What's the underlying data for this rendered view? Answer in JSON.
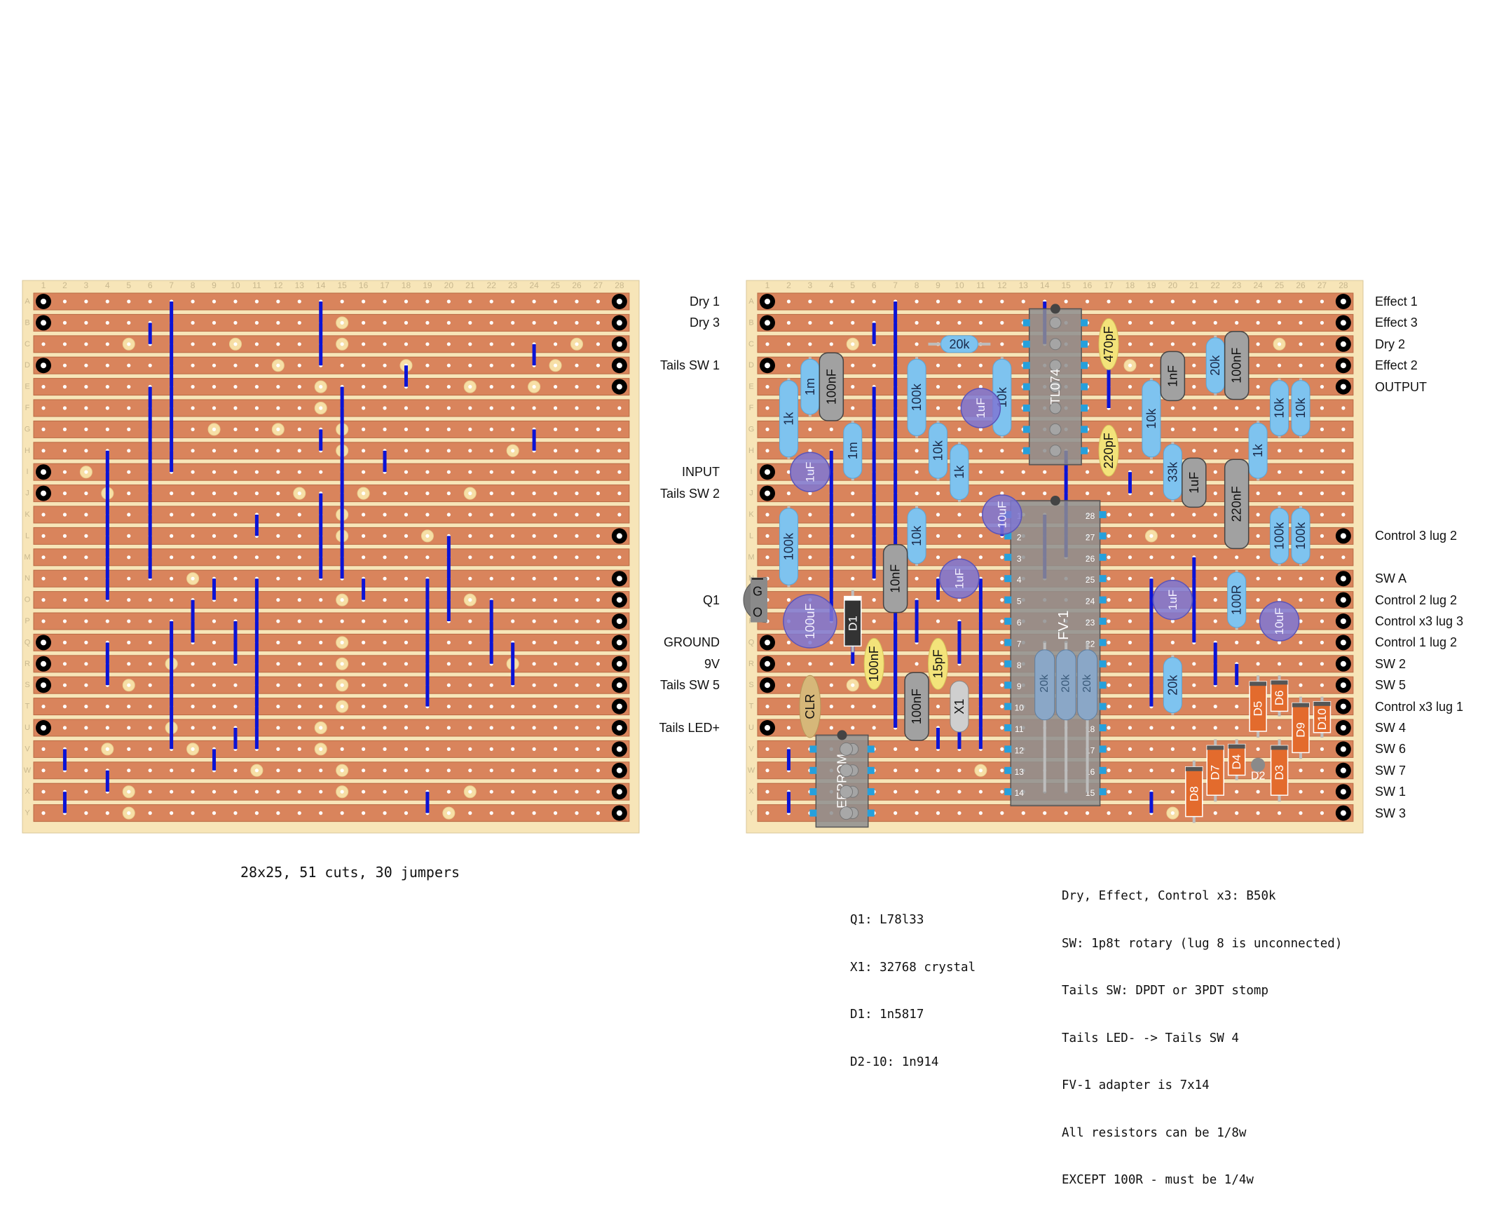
{
  "colors": {
    "board": "#f7e5b8",
    "strip": "#d9845c",
    "strip_edge": "#b96a44",
    "hole": "#ffffff",
    "cut": "#f7dfa6",
    "jumper": "#0b13d6",
    "resistor": "#7ec3ef",
    "electrolytic": "#7e77d4",
    "film_cap": "#a1a1a1",
    "ceramic_cap": "#f3e37a",
    "diode": "#e36b2d",
    "ic": "#8e8e8e",
    "ic_pin": "#26a0dc",
    "terminal": "#000000"
  },
  "board_left": {
    "columns": [
      "1",
      "2",
      "3",
      "4",
      "5",
      "6",
      "7",
      "8",
      "9",
      "10",
      "11",
      "12",
      "13",
      "14",
      "15",
      "16",
      "17",
      "18",
      "19",
      "20",
      "21",
      "22",
      "23",
      "24",
      "25",
      "26",
      "27",
      "28"
    ],
    "rows": [
      "A",
      "B",
      "C",
      "D",
      "E",
      "F",
      "G",
      "H",
      "I",
      "J",
      "K",
      "L",
      "M",
      "N",
      "O",
      "P",
      "Q",
      "R",
      "S",
      "T",
      "U",
      "V",
      "W",
      "X",
      "Y"
    ],
    "labels": [
      {
        "text": "Dry 1",
        "row": "A"
      },
      {
        "text": "Dry 3",
        "row": "B"
      },
      {
        "text": "Tails SW 1",
        "row": "D"
      },
      {
        "text": "INPUT",
        "row": "I"
      },
      {
        "text": "Tails SW 2",
        "row": "J"
      },
      {
        "text": "Q1",
        "row": "O"
      },
      {
        "text": "GROUND",
        "row": "Q"
      },
      {
        "text": "9V",
        "row": "R"
      },
      {
        "text": "Tails SW 5",
        "row": "S"
      },
      {
        "text": "Tails LED+",
        "row": "U"
      }
    ]
  },
  "board_right": {
    "columns": [
      "1",
      "2",
      "3",
      "4",
      "5",
      "6",
      "7",
      "8",
      "9",
      "10",
      "11",
      "12",
      "13",
      "14",
      "15",
      "16",
      "17",
      "18",
      "19",
      "20",
      "21",
      "22",
      "23",
      "24",
      "25",
      "26",
      "27",
      "28"
    ],
    "rows": [
      "A",
      "B",
      "C",
      "D",
      "E",
      "F",
      "G",
      "H",
      "I",
      "J",
      "K",
      "L",
      "M",
      "N",
      "O",
      "P",
      "Q",
      "R",
      "S",
      "T",
      "U",
      "V",
      "W",
      "X",
      "Y"
    ],
    "labels": [
      {
        "text": "Effect 1",
        "row": "A"
      },
      {
        "text": "Effect 3",
        "row": "B"
      },
      {
        "text": "Dry 2",
        "row": "C"
      },
      {
        "text": "Effect 2",
        "row": "D"
      },
      {
        "text": "OUTPUT",
        "row": "E"
      },
      {
        "text": "Control 3 lug 2",
        "row": "L"
      },
      {
        "text": "SW A",
        "row": "N"
      },
      {
        "text": "Control 2 lug 2",
        "row": "O"
      },
      {
        "text": "Control x3 lug 3",
        "row": "P"
      },
      {
        "text": "Control 1 lug 2",
        "row": "Q"
      },
      {
        "text": "SW 2",
        "row": "R"
      },
      {
        "text": "SW 5",
        "row": "S"
      },
      {
        "text": "Control x3 lug 1",
        "row": "T"
      },
      {
        "text": "SW 4",
        "row": "U"
      },
      {
        "text": "SW 6",
        "row": "V"
      },
      {
        "text": "SW 7",
        "row": "W"
      },
      {
        "text": "SW 1",
        "row": "X"
      },
      {
        "text": "SW 3",
        "row": "Y"
      }
    ],
    "components": {
      "resistors": [
        {
          "value": "1k",
          "col": 2,
          "r1": "E",
          "r2": "H"
        },
        {
          "value": "1m",
          "col": 3,
          "r1": "D",
          "r2": "F"
        },
        {
          "value": "100k",
          "col": 2,
          "r1": "K",
          "r2": "N"
        },
        {
          "value": "1m",
          "col": 5,
          "r1": "G",
          "r2": "I"
        },
        {
          "value": "20k",
          "col": 9,
          "r1": "C",
          "r2": "C",
          "c2": 11
        },
        {
          "value": "100k",
          "col": 8,
          "r1": "D",
          "r2": "G"
        },
        {
          "value": "10k",
          "col": 9,
          "r1": "G",
          "r2": "I"
        },
        {
          "value": "1k",
          "col": 10,
          "r1": "H",
          "r2": "J"
        },
        {
          "value": "10k",
          "col": 12,
          "r1": "D",
          "r2": "G"
        },
        {
          "value": "10k",
          "col": 8,
          "r1": "K",
          "r2": "M"
        },
        {
          "value": "10k",
          "col": 19,
          "r1": "E",
          "r2": "H"
        },
        {
          "value": "33k",
          "col": 20,
          "r1": "H",
          "r2": "J"
        },
        {
          "value": "20k",
          "col": 22,
          "r1": "C",
          "r2": "E"
        },
        {
          "value": "1k",
          "col": 24,
          "r1": "G",
          "r2": "I"
        },
        {
          "value": "10k",
          "col": 25,
          "r1": "E",
          "r2": "G"
        },
        {
          "value": "10k",
          "col": 26,
          "r1": "E",
          "r2": "G"
        },
        {
          "value": "100k",
          "col": 25,
          "r1": "K",
          "r2": "M"
        },
        {
          "value": "100k",
          "col": 26,
          "r1": "K",
          "r2": "M"
        },
        {
          "value": "100R",
          "col": 23,
          "r1": "N",
          "r2": "P"
        },
        {
          "value": "20k",
          "col": 20,
          "r1": "R",
          "r2": "T"
        }
      ],
      "electrolytics": [
        {
          "value": "1uF",
          "col": 3,
          "row": "I"
        },
        {
          "value": "100uF",
          "col": 3,
          "row": "P"
        },
        {
          "value": "1uF",
          "col": 11,
          "row": "F"
        },
        {
          "value": "10uF",
          "col": 12,
          "row": "K"
        },
        {
          "value": "1uF",
          "col": 10,
          "row": "N"
        },
        {
          "value": "1uF",
          "col": 20,
          "row": "O"
        },
        {
          "value": "10uF",
          "col": 25,
          "row": "P"
        }
      ],
      "film_caps": [
        {
          "value": "100nF",
          "col": 4,
          "r1": "D",
          "r2": "F"
        },
        {
          "value": "10nF",
          "col": 7,
          "r1": "M",
          "r2": "O"
        },
        {
          "value": "100nF",
          "col": 8,
          "r1": "S",
          "r2": "U"
        },
        {
          "value": "1nF",
          "col": 20,
          "r1": "D",
          "r2": "E"
        },
        {
          "value": "1uF",
          "col": 21,
          "r1": "I",
          "r2": "J"
        },
        {
          "value": "100nF",
          "col": 23,
          "r1": "C",
          "r2": "E"
        },
        {
          "value": "220nF",
          "col": 23,
          "r1": "I",
          "r2": "L"
        }
      ],
      "ceramic_caps": [
        {
          "value": "470pF",
          "col": 17,
          "r1": "B",
          "r2": "D"
        },
        {
          "value": "220pF",
          "col": 17,
          "r1": "G",
          "r2": "I"
        },
        {
          "value": "100nF",
          "col": 6,
          "r1": "Q",
          "r2": "S"
        },
        {
          "value": "15pF",
          "col": 9,
          "r1": "Q",
          "r2": "S"
        }
      ],
      "diodes": [
        {
          "value": "D1",
          "col": 5,
          "r1": "O",
          "r2": "Q",
          "color": "#333333"
        },
        {
          "value": "D5",
          "col": 24,
          "r1": "S",
          "r2": "U"
        },
        {
          "value": "D6",
          "col": 25,
          "r1": "S",
          "r2": "T"
        },
        {
          "value": "D9",
          "col": 26,
          "r1": "T",
          "r2": "V"
        },
        {
          "value": "D10",
          "col": 27,
          "r1": "T",
          "r2": "U"
        },
        {
          "value": "D7",
          "col": 22,
          "r1": "V",
          "r2": "X"
        },
        {
          "value": "D4",
          "col": 23,
          "r1": "V",
          "r2": "W"
        },
        {
          "value": "D3",
          "col": 25,
          "r1": "V",
          "r2": "X"
        },
        {
          "value": "D8",
          "col": 21,
          "r1": "W",
          "r2": "Y"
        }
      ],
      "misc": [
        {
          "value": "CLR",
          "col": 3,
          "r1": "S",
          "r2": "U"
        },
        {
          "value": "X1",
          "col": 10,
          "r1": "S",
          "r2": "U"
        },
        {
          "value": "D2",
          "col": 24,
          "row": "W"
        }
      ],
      "ics": [
        {
          "value": "TL074",
          "c1": 14,
          "c2": 15,
          "r1": "B",
          "r2": "H",
          "pins_left": [],
          "pins_right": []
        },
        {
          "value": "FV-1",
          "c1": 13,
          "c2": 16,
          "r1": "K",
          "r2": "X"
        },
        {
          "value": "EEPROM",
          "c1": 4,
          "c2": 5,
          "r1": "V",
          "r2": "Y"
        }
      ],
      "fv1_pins_left": [
        "1",
        "2",
        "3",
        "4",
        "5",
        "6",
        "7",
        "8",
        "9",
        "10",
        "11",
        "12",
        "13",
        "14"
      ],
      "fv1_pins_right": [
        "28",
        "27",
        "26",
        "25",
        "24",
        "23",
        "22",
        "21",
        "20",
        "19",
        "18",
        "17",
        "16",
        "15"
      ],
      "fv1_resistors": [
        {
          "value": "20k",
          "col": 14
        },
        {
          "value": "20k",
          "col": 15
        },
        {
          "value": "20k",
          "col": 16
        }
      ],
      "regulator_pins": [
        "G",
        "O"
      ]
    }
  },
  "summary": "28x25, 51 cuts, 30 jumpers",
  "notes_center": [
    "Q1: L78l33",
    "X1: 32768 crystal",
    "D1: 1n5817",
    "D2-10: 1n914"
  ],
  "notes_right": [
    "Dry, Effect, Control x3: B50k",
    "SW: 1p8t rotary (lug 8 is unconnected)",
    "Tails SW: DPDT or 3PDT stomp",
    "Tails LED- -> Tails SW 4",
    "FV-1 adapter is 7x14",
    "All resistors can be 1/8w",
    "EXCEPT 100R - must be 1/4w"
  ]
}
